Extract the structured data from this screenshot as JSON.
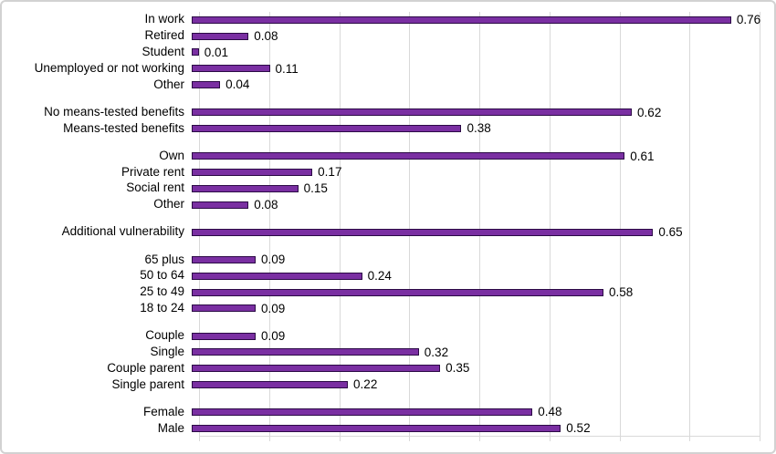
{
  "chart_data": {
    "type": "bar",
    "orientation": "horizontal",
    "title": "",
    "xlabel": "",
    "ylabel": "",
    "xlim": [
      0,
      0.8
    ],
    "gridline_step": 0.1,
    "grid": true,
    "legend": false,
    "value_labels_shown": true,
    "groups": [
      [
        {
          "label": "In work",
          "value": 0.76,
          "value_label": "0.76"
        },
        {
          "label": "Retired",
          "value": 0.08,
          "value_label": "0.08"
        },
        {
          "label": "Student",
          "value": 0.01,
          "value_label": "0.01"
        },
        {
          "label": "Unemployed or not working",
          "value": 0.11,
          "value_label": "0.11"
        },
        {
          "label": "Other",
          "value": 0.04,
          "value_label": "0.04"
        }
      ],
      [
        {
          "label": "No means-tested benefits",
          "value": 0.62,
          "value_label": "0.62"
        },
        {
          "label": "Means-tested benefits",
          "value": 0.38,
          "value_label": "0.38"
        }
      ],
      [
        {
          "label": "Own",
          "value": 0.61,
          "value_label": "0.61"
        },
        {
          "label": "Private rent",
          "value": 0.17,
          "value_label": "0.17"
        },
        {
          "label": "Social rent",
          "value": 0.15,
          "value_label": "0.15"
        },
        {
          "label": "Other",
          "value": 0.08,
          "value_label": "0.08"
        }
      ],
      [
        {
          "label": "Additional vulnerability",
          "value": 0.65,
          "value_label": "0.65"
        }
      ],
      [
        {
          "label": "65 plus",
          "value": 0.09,
          "value_label": "0.09"
        },
        {
          "label": "50 to 64",
          "value": 0.24,
          "value_label": "0.24"
        },
        {
          "label": "25 to 49",
          "value": 0.58,
          "value_label": "0.58"
        },
        {
          "label": "18 to 24",
          "value": 0.09,
          "value_label": "0.09"
        }
      ],
      [
        {
          "label": "Couple",
          "value": 0.09,
          "value_label": "0.09"
        },
        {
          "label": "Single",
          "value": 0.32,
          "value_label": "0.32"
        },
        {
          "label": "Couple parent",
          "value": 0.35,
          "value_label": "0.35"
        },
        {
          "label": "Single parent",
          "value": 0.22,
          "value_label": "0.22"
        }
      ],
      [
        {
          "label": "Female",
          "value": 0.48,
          "value_label": "0.48"
        },
        {
          "label": "Male",
          "value": 0.52,
          "value_label": "0.52"
        }
      ]
    ],
    "colors": {
      "bar_fill": "#7a2fa2",
      "bar_border": "#2b0a45",
      "gridline": "#d9d9d9",
      "axis_line": "#d9d9d9",
      "text": "#000000",
      "chart_border": "#d2d2d2",
      "background": "#ffffff"
    }
  }
}
